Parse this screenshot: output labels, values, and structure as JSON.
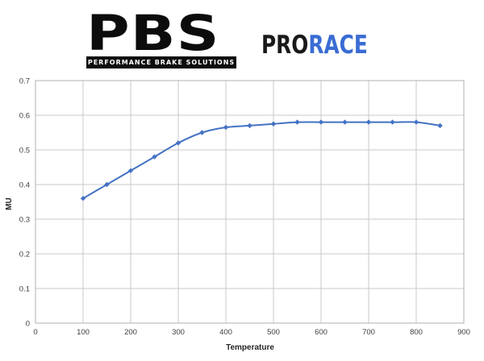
{
  "header": {
    "logo": {
      "acronym": "PBS",
      "tagline": "PERFORMANCE BRAKE SOLUTIONS",
      "color": "#0c0c0c"
    },
    "brand": {
      "pro": "PRO",
      "race": "RACE",
      "pro_color": "#1a1a1a",
      "race_color": "#3a6cd4"
    }
  },
  "chart_data": {
    "type": "line",
    "title": "",
    "xlabel": "Temperature",
    "ylabel": "MU",
    "x": [
      100,
      150,
      200,
      250,
      300,
      350,
      400,
      450,
      500,
      550,
      600,
      650,
      700,
      750,
      800,
      850
    ],
    "series": [
      {
        "name": "MU",
        "values": [
          0.36,
          0.4,
          0.44,
          0.48,
          0.52,
          0.55,
          0.565,
          0.57,
          0.575,
          0.58,
          0.58,
          0.58,
          0.58,
          0.58,
          0.58,
          0.57
        ]
      }
    ],
    "xlim": [
      0,
      900
    ],
    "ylim": [
      0,
      0.7
    ],
    "x_ticks": [
      0,
      100,
      200,
      300,
      400,
      500,
      600,
      700,
      800,
      900
    ],
    "y_ticks": [
      0,
      0.1,
      0.2,
      0.3,
      0.4,
      0.5,
      0.6,
      0.7
    ],
    "grid": true,
    "legend": "none",
    "marker": "diamond",
    "line_color": "#4472c4",
    "grid_color": "#c9c9c9",
    "border_color": "#b0b0b0"
  }
}
